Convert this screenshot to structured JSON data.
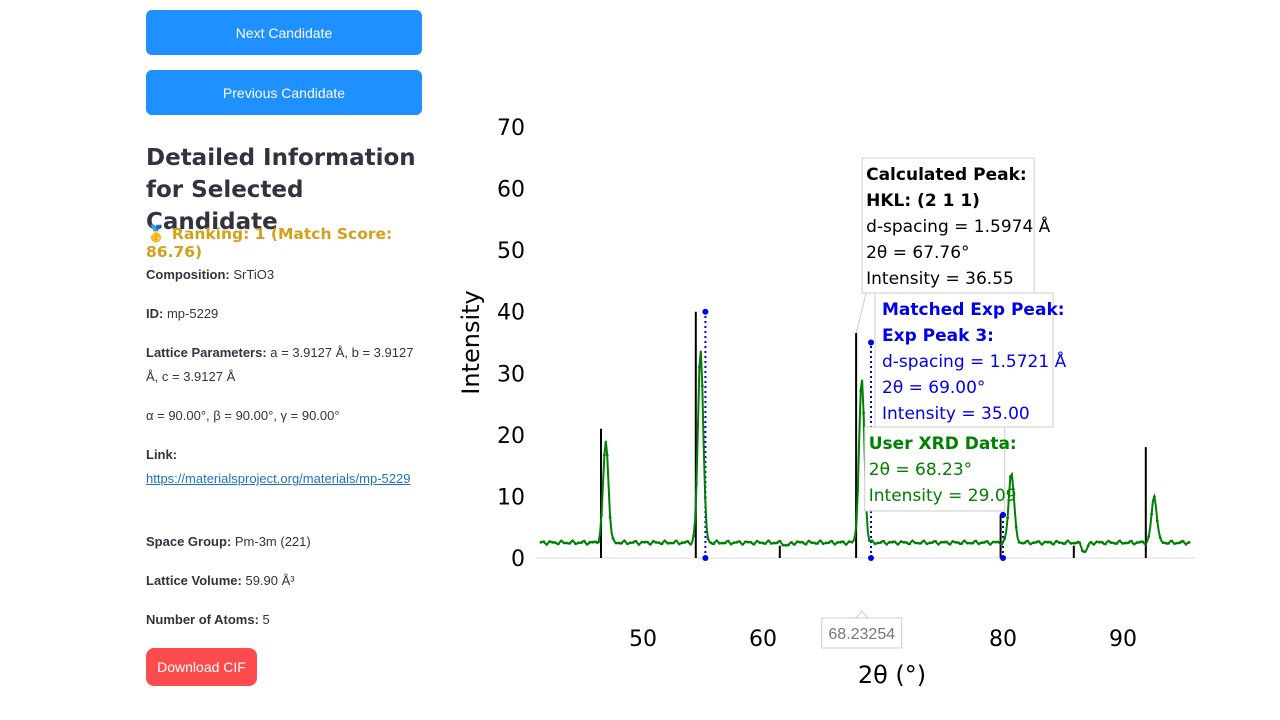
{
  "sidebar": {
    "next_button": "Next Candidate",
    "prev_button": "Previous Candidate",
    "heading": "Detailed Information for Selected Candidate",
    "ranking_icon": "medal-icon",
    "ranking_text": "Ranking: 1 (Match Score: 86.76)",
    "composition_label": "Composition:",
    "composition_value": "SrTiO3",
    "id_label": "ID:",
    "id_value": "mp-5229",
    "lattice_label": "Lattice Parameters:",
    "lattice_value": "a = 3.9127 Å, b = 3.9127 Å, c = 3.9127 Å",
    "angles_value": "α = 90.00°, β = 90.00°, γ = 90.00°",
    "link_label": "Link:",
    "link_value": "https://materialsproject.org/materials/mp-5229",
    "space_group_label": "Space Group:",
    "space_group_value": "Pm-3m (221)",
    "volume_label": "Lattice Volume:",
    "volume_value": "59.90 Å³",
    "atoms_label": "Number of Atoms:",
    "atoms_value": "5",
    "download_button": "Download CIF"
  },
  "colors": {
    "primary_button": "#1e90ff",
    "download_button": "#ff4b4b",
    "ranking": "#d4a017",
    "calc": "#000000",
    "matched": "#0000ee",
    "user": "#008000"
  },
  "chart_data": {
    "type": "line",
    "xlabel": "2θ (°)",
    "ylabel": "Intensity",
    "xlim": [
      41,
      96
    ],
    "ylim": [
      0,
      70
    ],
    "xticks": [
      50,
      60,
      70,
      80,
      90
    ],
    "yticks": [
      0,
      10,
      20,
      30,
      40,
      50,
      60,
      70
    ],
    "hover_x_label": "68.23254",
    "calculated_peaks": [
      {
        "x": 46.5,
        "y": 21
      },
      {
        "x": 54.4,
        "y": 40
      },
      {
        "x": 61.4,
        "y": 2
      },
      {
        "x": 67.76,
        "y": 36.55
      },
      {
        "x": 79.8,
        "y": 7
      },
      {
        "x": 85.9,
        "y": 2
      },
      {
        "x": 91.9,
        "y": 18
      }
    ],
    "matched_exp_peaks": [
      {
        "x": 55.2,
        "y": 40
      },
      {
        "x": 69.0,
        "y": 35
      },
      {
        "x": 80.0,
        "y": 7
      }
    ],
    "user_peaks": [
      {
        "x": 46.9,
        "y": 19
      },
      {
        "x": 54.8,
        "y": 34
      },
      {
        "x": 62.0,
        "y": 2
      },
      {
        "x": 68.23,
        "y": 29.09
      },
      {
        "x": 80.7,
        "y": 14
      },
      {
        "x": 86.8,
        "y": 1
      },
      {
        "x": 92.6,
        "y": 10
      }
    ],
    "user_baseline": 2.5,
    "tooltip_calc": {
      "title1": "Calculated Peak:",
      "title2": "HKL: (2 1 1)",
      "line1": "d-spacing = 1.5974 Å",
      "line2": "2θ = 67.76°",
      "line3": "Intensity = 36.55"
    },
    "tooltip_matched": {
      "title1": "Matched Exp Peak:",
      "title2": "Exp Peak 3:",
      "line1": "d-spacing = 1.5721 Å",
      "line2": "2θ = 69.00°",
      "line3": "Intensity = 35.00"
    },
    "tooltip_user": {
      "title1": "User XRD Data:",
      "line1": "2θ = 68.23°",
      "line2": "Intensity = 29.09"
    }
  }
}
